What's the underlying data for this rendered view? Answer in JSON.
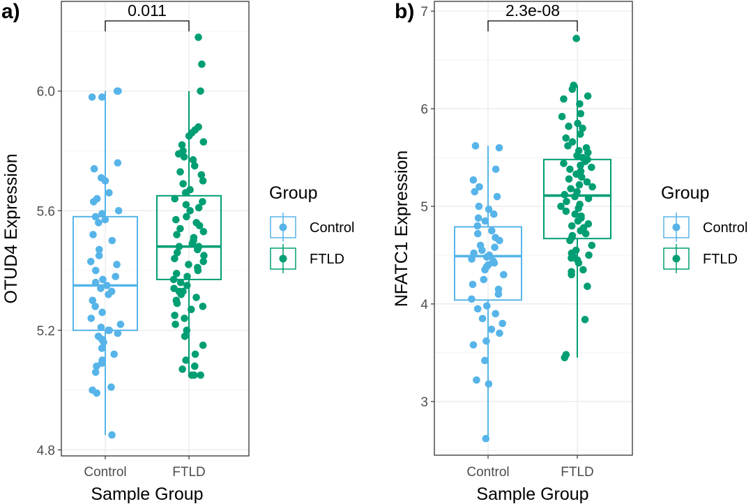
{
  "colors": {
    "Control": "#56B4E9",
    "FTLD": "#009E73",
    "grid": "#ebebeb",
    "frame": "#333333"
  },
  "legend": {
    "title": "Group",
    "labels": [
      "Control",
      "FTLD"
    ]
  },
  "chart_data": [
    {
      "type": "box-jitter",
      "panel_label": "a)",
      "categories": [
        "Control",
        "FTLD"
      ],
      "xlabel": "Sample Group",
      "ylabel": "OTUD4 Expression",
      "ylim": [
        4.78,
        6.3
      ],
      "yticks": [
        4.8,
        5.2,
        5.6,
        6.0
      ],
      "ytick_labels": [
        "4.8",
        "5.2",
        "5.6",
        "6.0"
      ],
      "p_value": "0.011",
      "boxes": [
        {
          "group": "Control",
          "min": 4.85,
          "q1": 5.2,
          "median": 5.35,
          "q3": 5.58,
          "max": 6.0
        },
        {
          "group": "FTLD",
          "min": 5.05,
          "q1": 5.37,
          "median": 5.48,
          "q3": 5.65,
          "max": 6.0
        }
      ],
      "points": {
        "Control": [
          6.0,
          6.0,
          5.98,
          5.98,
          5.76,
          5.74,
          5.71,
          5.7,
          5.66,
          5.64,
          5.63,
          5.6,
          5.59,
          5.58,
          5.57,
          5.56,
          5.52,
          5.5,
          5.47,
          5.45,
          5.43,
          5.42,
          5.4,
          5.38,
          5.37,
          5.36,
          5.35,
          5.34,
          5.33,
          5.32,
          5.3,
          5.28,
          5.26,
          5.24,
          5.22,
          5.21,
          5.2,
          5.2,
          5.19,
          5.18,
          5.17,
          5.16,
          5.14,
          5.12,
          5.1,
          5.09,
          5.08,
          5.06,
          5.01,
          5.0,
          4.99,
          4.85
        ],
        "FTLD": [
          6.18,
          6.09,
          6.0,
          5.88,
          5.87,
          5.86,
          5.85,
          5.83,
          5.82,
          5.8,
          5.79,
          5.78,
          5.77,
          5.75,
          5.73,
          5.72,
          5.7,
          5.69,
          5.67,
          5.66,
          5.64,
          5.63,
          5.62,
          5.61,
          5.6,
          5.58,
          5.57,
          5.56,
          5.55,
          5.54,
          5.53,
          5.52,
          5.51,
          5.5,
          5.49,
          5.48,
          5.48,
          5.47,
          5.46,
          5.45,
          5.44,
          5.43,
          5.42,
          5.41,
          5.4,
          5.39,
          5.38,
          5.37,
          5.36,
          5.35,
          5.34,
          5.33,
          5.33,
          5.32,
          5.31,
          5.3,
          5.29,
          5.28,
          5.27,
          5.25,
          5.24,
          5.22,
          5.2,
          5.18,
          5.15,
          5.12,
          5.1,
          5.08,
          5.07,
          5.05,
          5.05,
          5.05
        ]
      }
    },
    {
      "type": "box-jitter",
      "panel_label": "b)",
      "categories": [
        "Control",
        "FTLD"
      ],
      "xlabel": "Sample Group",
      "ylabel": "NFATC1 Expression",
      "ylim": [
        2.45,
        7.1
      ],
      "yticks": [
        3,
        4,
        5,
        6,
        7
      ],
      "ytick_labels": [
        "3",
        "4",
        "5",
        "6",
        "7"
      ],
      "p_value": "2.3e-08",
      "boxes": [
        {
          "group": "Control",
          "min": 2.62,
          "q1": 4.04,
          "median": 4.49,
          "q3": 4.79,
          "max": 5.62
        },
        {
          "group": "FTLD",
          "min": 3.45,
          "q1": 4.67,
          "median": 5.11,
          "q3": 5.48,
          "max": 6.24
        }
      ],
      "points": {
        "Control": [
          5.62,
          5.6,
          5.38,
          5.27,
          5.2,
          5.15,
          5.1,
          5.0,
          4.97,
          4.92,
          4.88,
          4.85,
          4.8,
          4.75,
          4.72,
          4.68,
          4.65,
          4.6,
          4.58,
          4.55,
          4.52,
          4.5,
          4.48,
          4.46,
          4.44,
          4.42,
          4.4,
          4.38,
          4.35,
          4.3,
          4.25,
          4.2,
          4.15,
          4.1,
          4.05,
          3.98,
          3.95,
          3.9,
          3.85,
          3.8,
          3.74,
          3.7,
          3.62,
          3.58,
          3.42,
          3.22,
          3.18,
          2.62
        ],
        "FTLD": [
          6.72,
          6.24,
          6.2,
          6.13,
          6.1,
          6.05,
          5.95,
          5.92,
          5.85,
          5.82,
          5.8,
          5.74,
          5.7,
          5.66,
          5.62,
          5.6,
          5.57,
          5.55,
          5.52,
          5.5,
          5.48,
          5.46,
          5.44,
          5.42,
          5.4,
          5.38,
          5.36,
          5.33,
          5.3,
          5.28,
          5.25,
          5.22,
          5.2,
          5.18,
          5.15,
          5.12,
          5.1,
          5.08,
          5.05,
          5.02,
          5.0,
          4.98,
          4.95,
          4.92,
          4.9,
          4.88,
          4.85,
          4.82,
          4.8,
          4.78,
          4.75,
          4.72,
          4.7,
          4.68,
          4.65,
          4.6,
          4.55,
          4.52,
          4.5,
          4.48,
          4.47,
          4.45,
          4.42,
          4.35,
          4.33,
          4.3,
          4.18,
          3.84,
          3.48,
          3.45
        ]
      }
    }
  ]
}
